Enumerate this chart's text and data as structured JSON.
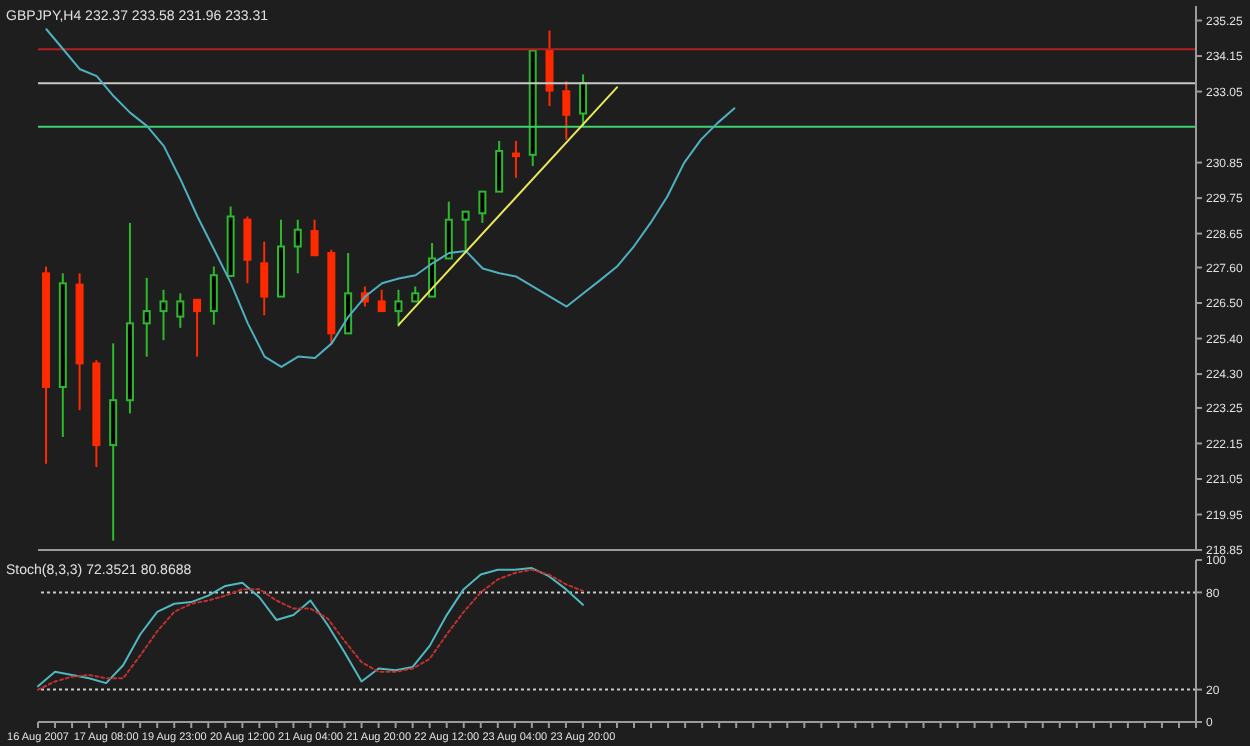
{
  "chart_data": [
    {
      "type": "candlestick",
      "title": "GBPJPY,H4 232.37 233.58 231.96 233.31",
      "categories": [
        null,
        null,
        null,
        null,
        null,
        null,
        null,
        null,
        null,
        null,
        null,
        null,
        null,
        null,
        null,
        null,
        null,
        null,
        null,
        null,
        null,
        null,
        null,
        null,
        null,
        null,
        null,
        null,
        null,
        null,
        null,
        null,
        null,
        null,
        null,
        null,
        null,
        null,
        null,
        null,
        null,
        null,
        null,
        null,
        null,
        null,
        null,
        null,
        null,
        null,
        null,
        null,
        null,
        null,
        null,
        null,
        null,
        null,
        null,
        null,
        null,
        null,
        null,
        null,
        null,
        null,
        null,
        null,
        null
      ],
      "ohlc": [
        [
          227.42,
          227.63,
          221.52,
          223.9
        ],
        [
          223.9,
          227.42,
          222.35,
          227.11
        ],
        [
          227.07,
          227.42,
          223.18,
          224.63
        ],
        [
          224.63,
          224.73,
          221.42,
          222.1
        ],
        [
          222.1,
          225.25,
          219.14,
          223.49
        ],
        [
          223.49,
          228.98,
          223.08,
          225.87
        ],
        [
          225.87,
          227.28,
          224.84,
          226.25
        ],
        [
          226.25,
          226.91,
          225.35,
          226.55
        ],
        [
          226.08,
          226.8,
          225.73,
          226.55
        ],
        [
          226.6,
          226.6,
          224.84,
          226.25
        ],
        [
          226.25,
          227.63,
          225.83,
          227.36
        ],
        [
          227.34,
          229.49,
          227.3,
          229.18
        ],
        [
          229.08,
          229.18,
          227.11,
          227.84
        ],
        [
          227.73,
          228.4,
          226.12,
          226.7
        ],
        [
          226.7,
          229.08,
          226.7,
          228.25
        ],
        [
          228.25,
          229.08,
          227.42,
          228.77
        ],
        [
          228.73,
          229.08,
          227.98,
          227.98
        ],
        [
          228.05,
          228.15,
          225.25,
          225.56
        ],
        [
          225.56,
          228.05,
          225.56,
          226.8
        ],
        [
          226.8,
          227.01,
          226.39,
          226.55
        ],
        [
          226.55,
          226.91,
          226.25,
          226.25
        ],
        [
          226.25,
          226.91,
          225.77,
          226.55
        ],
        [
          226.55,
          227.01,
          226.55,
          226.8
        ],
        [
          226.7,
          228.36,
          226.7,
          227.88
        ],
        [
          227.88,
          229.64,
          227.88,
          229.08
        ],
        [
          229.08,
          229.33,
          228.15,
          229.33
        ],
        [
          229.28,
          229.95,
          228.98,
          229.95
        ],
        [
          229.95,
          231.52,
          229.95,
          231.21
        ],
        [
          231.13,
          231.52,
          230.38,
          231.05
        ],
        [
          231.09,
          234.32,
          230.74,
          234.32
        ],
        [
          234.32,
          234.94,
          232.6,
          233.08
        ],
        [
          233.06,
          233.37,
          231.56,
          232.33
        ],
        [
          232.37,
          233.58,
          231.96,
          233.31
        ],
        null,
        null,
        null,
        null,
        null,
        null,
        null,
        null,
        null,
        null,
        null,
        null,
        null,
        null,
        null,
        null,
        null,
        null,
        null,
        null,
        null,
        null,
        null,
        null,
        null,
        null,
        null,
        null,
        null,
        null,
        null,
        null,
        null,
        null,
        null,
        null
      ],
      "colors": [
        "#ff2a00",
        "#2db82d",
        "#ff2a00",
        "#ff2a00",
        "#2db82d",
        "#2db82d",
        "#2db82d",
        "#2db82d",
        "#2db82d",
        "#ff2a00",
        "#2db82d",
        "#2db82d",
        "#ff2a00",
        "#ff2a00",
        "#2db82d",
        "#2db82d",
        "#ff2a00",
        "#ff2a00",
        "#2db82d",
        "#ff2a00",
        "#ff2a00",
        "#2db82d",
        "#2db82d",
        "#2db82d",
        "#2db82d",
        "#2db82d",
        "#2db82d",
        "#2db82d",
        "#ff2a00",
        "#2db82d",
        "#ff2a00",
        "#ff2a00",
        "#2db82d",
        null,
        null,
        null,
        null,
        null,
        null,
        null,
        null,
        null,
        null,
        null,
        null,
        null,
        null,
        null,
        null,
        null,
        null,
        null,
        null,
        null,
        null,
        null,
        null,
        null,
        null,
        null,
        null,
        null,
        null,
        null,
        null,
        null,
        null,
        null,
        null
      ],
      "series": [
        {
          "type": "line",
          "color": "#4fb0c0",
          "values": [
            234.98,
            234.36,
            233.74,
            233.53,
            232.91,
            232.39,
            231.98,
            231.36,
            230.32,
            229.18,
            228.15,
            227.11,
            225.87,
            224.84,
            224.52,
            224.84,
            224.8,
            225.25,
            226.08,
            226.7,
            227.11,
            227.26,
            227.36,
            227.73,
            228.05,
            228.11,
            227.57,
            227.42,
            227.32,
            227.01,
            226.7,
            226.39,
            226.8,
            227.21,
            227.63,
            228.25,
            228.98,
            229.8,
            230.84,
            231.56,
            232.08,
            232.53,
            null,
            null,
            null,
            null,
            null,
            null,
            null,
            null,
            null,
            null,
            null,
            null,
            null,
            null,
            null,
            null,
            null,
            null,
            null,
            null,
            null,
            null,
            null,
            null,
            null,
            null,
            null
          ]
        },
        {
          "type": "line",
          "color": "#e8e85a",
          "values": [
            null,
            null,
            null,
            null,
            null,
            null,
            null,
            null,
            null,
            null,
            null,
            null,
            null,
            null,
            null,
            null,
            null,
            null,
            null,
            null,
            null,
            225.83,
            null,
            null,
            null,
            null,
            null,
            null,
            null,
            null,
            null,
            null,
            null,
            null,
            233.18,
            null,
            null,
            null,
            null,
            null,
            null,
            null,
            null,
            null,
            null,
            null,
            null,
            null,
            null,
            null,
            null,
            null,
            null,
            null,
            null,
            null,
            null,
            null,
            null,
            null,
            null,
            null,
            null,
            null,
            null,
            null,
            null,
            null,
            null
          ]
        }
      ],
      "ylim": [
        218.85,
        235.7
      ],
      "yticks": [
        235.25,
        234.15,
        233.05,
        230.85,
        229.75,
        228.65,
        {
          "value": 227.6,
          "label": "227.60"
        },
        {
          "value": 226.5,
          "label": "226.50"
        },
        {
          "value": 225.4,
          "label": "225.40"
        },
        {
          "value": 224.3,
          "label": "224.30"
        },
        223.25,
        222.15,
        221.05,
        219.95,
        218.85
      ],
      "ref_lines": [
        {
          "axis": "y",
          "value": 234.36,
          "color": "#b02020"
        },
        {
          "axis": "y",
          "value": 233.31,
          "color": "#c8c8c8"
        },
        {
          "axis": "y",
          "value": 231.96,
          "color": "#3cd070"
        }
      ],
      "tick_labels": "y",
      "legend": false
    },
    {
      "type": "line",
      "title": "Stoch(8,3,3) 72.3521 80.8688",
      "categories": [
        "16 Aug 2007",
        null,
        null,
        null,
        "17 Aug 08:00",
        null,
        null,
        null,
        "19 Aug 23:00",
        null,
        null,
        null,
        "20 Aug 12:00",
        null,
        null,
        null,
        "21 Aug 04:00",
        null,
        null,
        null,
        "21 Aug 20:00",
        null,
        null,
        null,
        "22 Aug 12:00",
        null,
        null,
        null,
        "23 Aug 04:00",
        null,
        null,
        null,
        "23 Aug 20:00",
        null,
        null,
        null,
        null,
        null,
        null,
        null,
        null,
        null,
        null,
        null,
        null,
        null,
        null,
        null,
        null,
        null,
        null,
        null,
        null,
        null,
        null,
        null,
        null,
        null,
        null,
        null,
        null,
        null,
        null,
        null,
        null,
        null,
        null,
        null,
        null
      ],
      "series": [
        {
          "color": "#4fb8c0",
          "values": [
            22,
            31,
            29,
            27,
            24,
            35,
            54,
            68,
            73,
            74,
            78,
            84,
            86,
            77,
            63,
            66,
            75,
            60,
            43,
            25,
            33,
            32,
            34,
            47,
            66,
            82,
            91,
            94,
            94,
            95,
            90,
            82,
            72.35,
            null,
            null,
            null,
            null,
            null,
            null,
            null,
            null,
            null,
            null,
            null,
            null,
            null,
            null,
            null,
            null,
            null,
            null,
            null,
            null,
            null,
            null,
            null,
            null,
            null,
            null,
            null,
            null,
            null,
            null,
            null,
            null,
            null,
            null,
            null,
            null
          ]
        },
        {
          "color": "#c03030",
          "line_style": "dotted",
          "values": [
            20,
            25,
            28,
            29,
            27,
            27,
            41,
            56,
            68,
            73,
            75,
            78,
            82,
            82,
            75,
            70,
            70,
            64,
            50,
            37,
            31,
            31,
            33,
            39,
            54,
            68,
            80,
            88,
            92,
            94,
            91,
            85,
            80.87,
            null,
            null,
            null,
            null,
            null,
            null,
            null,
            null,
            null,
            null,
            null,
            null,
            null,
            null,
            null,
            null,
            null,
            null,
            null,
            null,
            null,
            null,
            null,
            null,
            null,
            null,
            null,
            null,
            null,
            null,
            null,
            null,
            null,
            null,
            null,
            null
          ]
        }
      ],
      "ylim": [
        0,
        100
      ],
      "yticks": [
        0,
        20,
        80,
        100
      ],
      "ref_lines": [
        {
          "axis": "y",
          "value": 80,
          "color": "#c8c8c8",
          "line_style": "dotted"
        },
        {
          "axis": "y",
          "value": 20,
          "color": "#c8c8c8",
          "line_style": "dotted"
        }
      ],
      "legend": false
    }
  ]
}
